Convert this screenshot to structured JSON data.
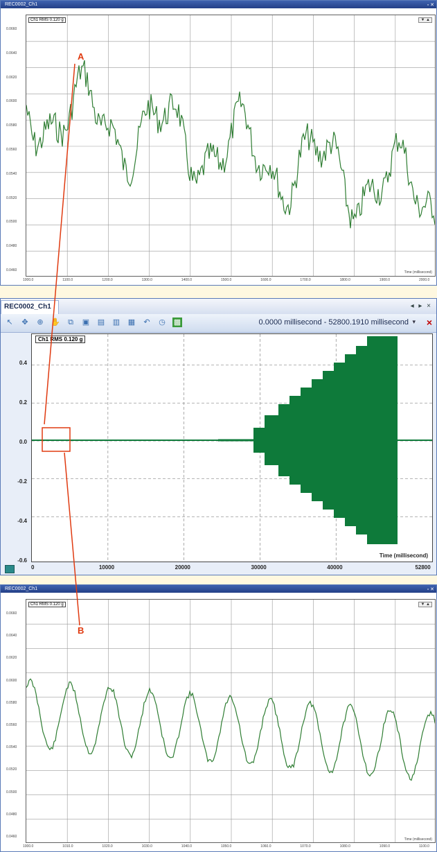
{
  "top_window": {
    "title": "REC0002_Ch1",
    "channel_label": "Ch1 RMS 0.120 g",
    "mini_ctrl": "▼  ▲",
    "x_title": "Time (millisecond)",
    "y_ticks": [
      "0.0660",
      "0.0640",
      "0.0620",
      "0.0600",
      "0.0580",
      "0.0560",
      "0.0540",
      "0.0520",
      "0.0500",
      "0.0480",
      "0.0460"
    ],
    "x_ticks": [
      "1000.0",
      "1100.0",
      "1200.0",
      "1300.0",
      "1400.0",
      "1500.0",
      "1600.0",
      "1700.0",
      "1800.0",
      "1900.0",
      "2000.0"
    ]
  },
  "middle_window": {
    "tab_title": "REC0002_Ch1",
    "tab_buttons": "◂ ▸ ×",
    "range_text": "0.0000 millisecond - 52800.1910 millisecond",
    "range_dropdown": "▾",
    "close": "×",
    "channel_label": "Ch1 RMS 0.120 g",
    "x_title": "Time (millisecond)",
    "y_ticks": [
      "0.4",
      "0.2",
      "0.0",
      "-0.2",
      "-0.4",
      "-0.6"
    ],
    "x_ticks": [
      "0",
      "10000",
      "20000",
      "30000",
      "40000",
      "52800"
    ],
    "tools": [
      "cursor-icon",
      "move-icon",
      "zoom-icon",
      "pan-icon",
      "copy-icon",
      "paste-icon",
      "page-icon",
      "page2-icon",
      "page3-icon",
      "undo-icon",
      "clock-icon",
      "export-icon"
    ],
    "status_icon": "grid-icon"
  },
  "bottom_window": {
    "title": "REC0002_Ch1",
    "channel_label": "Ch1 RMS 0.120 g",
    "mini_ctrl": "▼  ▲",
    "x_title": "Time (millisecond)",
    "y_ticks": [
      "0.0660",
      "0.0640",
      "0.0620",
      "0.0600",
      "0.0580",
      "0.0560",
      "0.0540",
      "0.0520",
      "0.0500",
      "0.0480",
      "0.0460"
    ],
    "x_ticks": [
      "1000.0",
      "1010.0",
      "1020.0",
      "1030.0",
      "1040.0",
      "1050.0",
      "1060.0",
      "1070.0",
      "1080.0",
      "1090.0",
      "1100.0"
    ]
  },
  "annotations": {
    "a": "A",
    "b": "B"
  },
  "colors": {
    "signal": "#2e7d32",
    "mid_signal": "#0e7a3a",
    "annot": "#e03a10"
  }
}
